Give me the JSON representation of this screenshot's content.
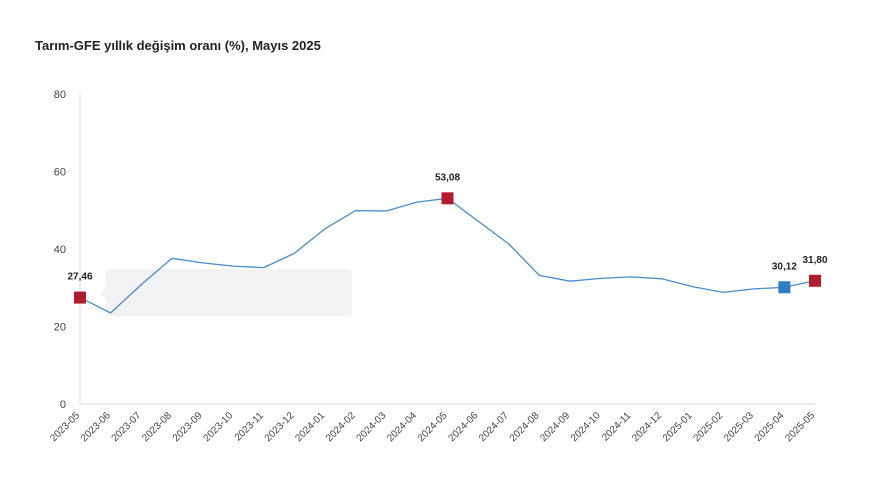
{
  "chart_data": {
    "type": "line",
    "title": "Tarım-GFE yıllık değişim oranı (%), Mayıs 2025",
    "xlabel": "",
    "ylabel": "",
    "ylim": [
      0,
      80
    ],
    "yticks": [
      "0",
      "20",
      "40",
      "60",
      "80"
    ],
    "grid": false,
    "categories": [
      "2023-05",
      "2023-06",
      "2023-07",
      "2023-08",
      "2023-09",
      "2023-10",
      "2023-11",
      "2023-12",
      "2024-01",
      "2024-02",
      "2024-03",
      "2024-04",
      "2024-05",
      "2024-06",
      "2024-07",
      "2024-08",
      "2024-09",
      "2024-10",
      "2024-11",
      "2024-12",
      "2025-01",
      "2025-02",
      "2025-03",
      "2025-04",
      "2025-05"
    ],
    "series": [
      {
        "values": [
          27.46,
          23.5,
          30.8,
          37.6,
          36.4,
          35.6,
          35.2,
          38.9,
          45.2,
          49.9,
          49.8,
          52.1,
          53.08,
          47.2,
          41.3,
          33.2,
          31.7,
          32.4,
          32.8,
          32.3,
          30.3,
          28.8,
          29.7,
          30.12,
          31.8
        ]
      }
    ],
    "line_color": "#4a8cc7",
    "highlighted_points": [
      {
        "category": "2023-05",
        "label": "27,46",
        "color": "#b01c2e"
      },
      {
        "category": "2024-05",
        "label": "53,08",
        "color": "#b01c2e"
      },
      {
        "category": "2025-04",
        "label": "30,12",
        "color": "#2e7ec0"
      },
      {
        "category": "2025-05",
        "label": "31,80",
        "color": "#b01c2e"
      }
    ]
  }
}
